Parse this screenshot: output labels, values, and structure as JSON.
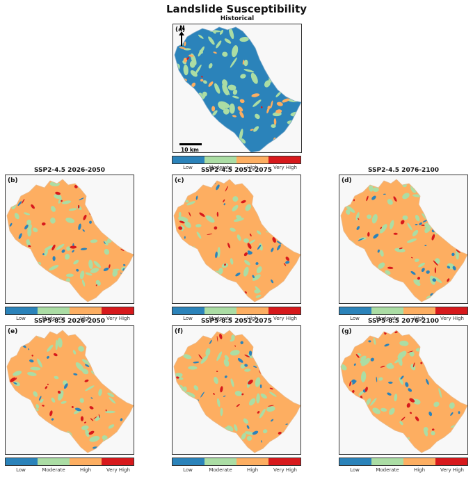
{
  "title": "Landslide Susceptibility",
  "colors": {
    "low": "#2b83ba",
    "moderate": "#abdda4",
    "high": "#fdae61",
    "very_high": "#d7191c"
  },
  "legend_labels": [
    "Low",
    "Moderate",
    "High",
    "Very High"
  ],
  "panels": [
    {
      "id": "a",
      "label": "(a)",
      "title": "Historical",
      "dominant": "low",
      "legend": {
        "low": 0.25,
        "moderate": 0.25,
        "high": 0.25,
        "very_high": 0.25
      }
    },
    {
      "id": "b",
      "label": "(b)",
      "title": "SSP2-4.5  2026-2050",
      "dominant": "high"
    },
    {
      "id": "c",
      "label": "(c)",
      "title": "SSP2-4.5  2051-2075",
      "dominant": "high"
    },
    {
      "id": "d",
      "label": "(d)",
      "title": "SSP2-4.5  2076-2100",
      "dominant": "high"
    },
    {
      "id": "e",
      "label": "(e)",
      "title": "SSP5-8.5  2026-2050",
      "dominant": "high"
    },
    {
      "id": "f",
      "label": "(f)",
      "title": "SSP5-8.5  2051-2075",
      "dominant": "high"
    },
    {
      "id": "g",
      "label": "(g)",
      "title": "SSP5-8.5  2076-2100",
      "dominant": "high"
    }
  ],
  "north_label": "N",
  "scale_label": "10 km"
}
